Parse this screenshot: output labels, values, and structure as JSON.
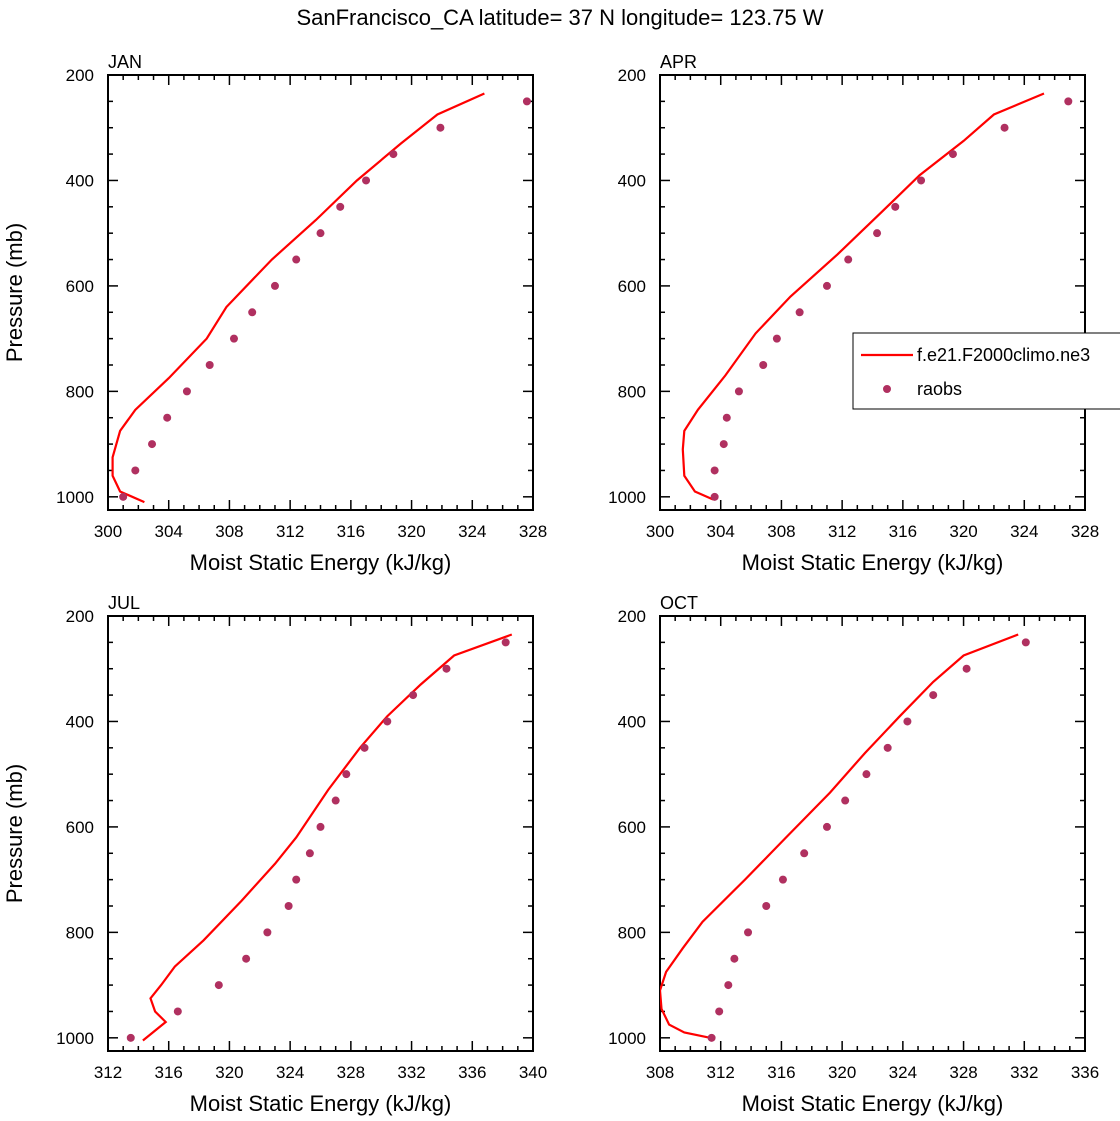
{
  "title": "SanFrancisco_CA  latitude= 37 N longitude= 123.75 W",
  "xlabel": "Moist Static Energy (kJ/kg)",
  "ylabel": "Pressure (mb)",
  "colors": {
    "model": "#ff0000",
    "obs": "#b03060"
  },
  "legend": {
    "model": "f.e21.F2000climo.ne3",
    "obs": "raobs",
    "placement": "right-middle of APR panel (clipped)"
  },
  "chart_data": [
    {
      "type": "line",
      "panel": "JAN",
      "xlim": [
        300,
        328
      ],
      "xticks": [
        300,
        304,
        308,
        312,
        316,
        320,
        324,
        328
      ],
      "ylim": [
        200,
        1025
      ],
      "yticks": [
        200,
        400,
        600,
        800,
        1000
      ],
      "y_reversed": true,
      "series": [
        {
          "name": "f.e21.F2000climo.ne3",
          "kind": "line",
          "x": [
            324.8,
            321.7,
            319.3,
            316.4,
            313.7,
            310.8,
            307.8,
            306.5,
            304.0,
            301.8,
            300.8,
            300.3,
            300.3,
            300.8,
            302.4
          ],
          "y": [
            235,
            275,
            330,
            400,
            475,
            550,
            640,
            700,
            775,
            835,
            875,
            925,
            960,
            990,
            1010
          ]
        },
        {
          "name": "raobs",
          "kind": "scatter",
          "x": [
            327.6,
            321.9,
            318.8,
            317.0,
            315.3,
            314.0,
            312.4,
            311.0,
            309.5,
            308.3,
            306.7,
            305.2,
            303.9,
            302.9,
            301.8,
            301.0
          ],
          "y": [
            250,
            300,
            350,
            400,
            450,
            500,
            550,
            600,
            650,
            700,
            750,
            800,
            850,
            900,
            950,
            1000
          ]
        }
      ]
    },
    {
      "type": "line",
      "panel": "APR",
      "xlim": [
        300,
        328
      ],
      "xticks": [
        300,
        304,
        308,
        312,
        316,
        320,
        324,
        328
      ],
      "ylim": [
        200,
        1025
      ],
      "yticks": [
        200,
        400,
        600,
        800,
        1000
      ],
      "y_reversed": true,
      "series": [
        {
          "name": "f.e21.F2000climo.ne3",
          "kind": "line",
          "x": [
            325.3,
            322.0,
            320.0,
            317.1,
            314.6,
            311.7,
            308.6,
            306.3,
            304.3,
            302.5,
            301.6,
            301.5,
            301.6,
            302.3,
            303.5
          ],
          "y": [
            235,
            275,
            325,
            390,
            460,
            540,
            620,
            690,
            770,
            835,
            875,
            910,
            960,
            990,
            1005
          ]
        },
        {
          "name": "raobs",
          "kind": "scatter",
          "x": [
            326.9,
            322.7,
            319.3,
            317.2,
            315.5,
            314.3,
            312.4,
            311.0,
            309.2,
            307.7,
            306.8,
            305.2,
            304.4,
            304.2,
            303.6,
            303.6
          ],
          "y": [
            250,
            300,
            350,
            400,
            450,
            500,
            550,
            600,
            650,
            700,
            750,
            800,
            850,
            900,
            950,
            1000
          ]
        }
      ]
    },
    {
      "type": "line",
      "panel": "JUL",
      "xlim": [
        312,
        340
      ],
      "xticks": [
        312,
        316,
        320,
        324,
        328,
        332,
        336,
        340
      ],
      "ylim": [
        200,
        1025
      ],
      "yticks": [
        200,
        400,
        600,
        800,
        1000
      ],
      "y_reversed": true,
      "series": [
        {
          "name": "f.e21.F2000climo.ne3",
          "kind": "line",
          "x": [
            338.6,
            334.8,
            332.6,
            330.4,
            328.6,
            326.5,
            324.4,
            323.0,
            320.8,
            318.3,
            316.4,
            315.5,
            314.8,
            315.1,
            315.8,
            314.3
          ],
          "y": [
            235,
            275,
            330,
            390,
            450,
            530,
            620,
            670,
            740,
            815,
            865,
            900,
            925,
            950,
            970,
            1005
          ]
        },
        {
          "name": "raobs",
          "kind": "scatter",
          "x": [
            338.2,
            334.3,
            332.1,
            330.4,
            328.9,
            327.7,
            327.0,
            326.0,
            325.3,
            324.4,
            323.9,
            322.5,
            321.1,
            319.3,
            316.6,
            313.5
          ],
          "y": [
            250,
            300,
            350,
            400,
            450,
            500,
            550,
            600,
            650,
            700,
            750,
            800,
            850,
            900,
            950,
            1000
          ]
        }
      ]
    },
    {
      "type": "line",
      "panel": "OCT",
      "xlim": [
        308,
        336
      ],
      "xticks": [
        308,
        312,
        316,
        320,
        324,
        328,
        332,
        336
      ],
      "ylim": [
        200,
        1025
      ],
      "yticks": [
        200,
        400,
        600,
        800,
        1000
      ],
      "y_reversed": true,
      "series": [
        {
          "name": "f.e21.F2000climo.ne3",
          "kind": "line",
          "x": [
            331.6,
            328.0,
            326.0,
            323.8,
            321.5,
            319.2,
            316.3,
            313.6,
            310.8,
            309.5,
            308.4,
            308.0,
            308.1,
            308.6,
            309.6,
            311.3
          ],
          "y": [
            235,
            275,
            325,
            390,
            460,
            535,
            620,
            700,
            780,
            830,
            875,
            910,
            945,
            975,
            990,
            1000
          ]
        },
        {
          "name": "raobs",
          "kind": "scatter",
          "x": [
            332.1,
            328.2,
            326.0,
            324.3,
            323.0,
            321.6,
            320.2,
            319.0,
            317.5,
            316.1,
            315.0,
            313.8,
            312.9,
            312.5,
            311.9,
            311.4
          ],
          "y": [
            250,
            300,
            350,
            400,
            450,
            500,
            550,
            600,
            650,
            700,
            750,
            800,
            850,
            900,
            950,
            1000
          ]
        }
      ]
    }
  ]
}
